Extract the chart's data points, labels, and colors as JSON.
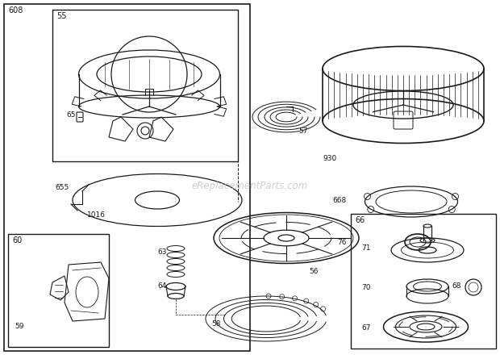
{
  "bg_color": "#ffffff",
  "line_color": "#1a1a1a",
  "watermark": "eReplacementParts.com",
  "figsize": [
    6.2,
    4.4
  ],
  "dpi": 100
}
